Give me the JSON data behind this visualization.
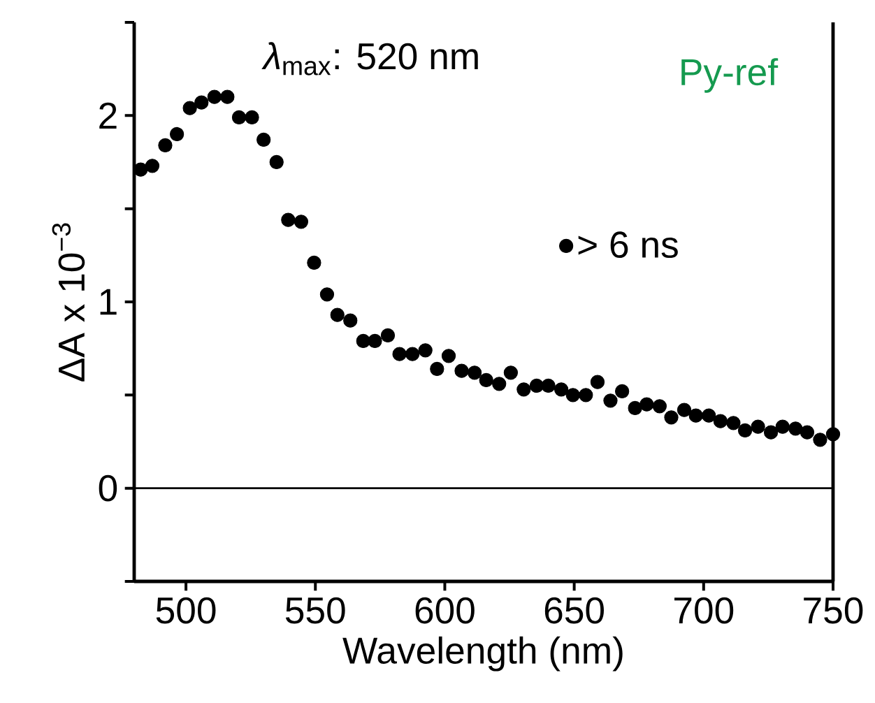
{
  "chart_data": {
    "type": "scatter",
    "xlabel": "Wavelength (nm)",
    "ylabel": "ΔA x 10$^{−3}$",
    "annotations": [
      "*λ*$_{max}$: 520 nm",
      "Py-ref"
    ],
    "xlim": [
      480,
      750
    ],
    "xticks": [
      500,
      550,
      600,
      650,
      700,
      750
    ],
    "ylim": [
      -0.5,
      2.5
    ],
    "yticks": [
      {
        "value": -0.5,
        "label": null
      },
      0,
      {
        "value": 0.5,
        "label": null
      },
      1,
      {
        "value": 1.5,
        "label": null
      },
      2,
      {
        "value": 2.5,
        "label": null
      }
    ],
    "ref_lines": [
      {
        "axis": "y",
        "value": 0,
        "color": "#000000"
      }
    ],
    "marker": "circle",
    "legend": "right",
    "series": [
      {
        "name": "> 6 ns",
        "color": "#000000",
        "x": [
          482.5,
          487,
          492,
          496.5,
          501.5,
          506,
          511,
          516,
          520.5,
          525.5,
          530,
          535,
          539.5,
          544.5,
          549.5,
          554.5,
          558.5,
          563.5,
          568.5,
          573,
          578,
          582.5,
          587.5,
          592.5,
          597,
          601.5,
          606.5,
          611.5,
          616,
          621,
          625.5,
          630.5,
          635.5,
          640,
          645,
          649.5,
          654.5,
          659,
          664,
          668.5,
          673.5,
          678,
          683,
          687.5,
          692.5,
          697,
          702,
          706.5,
          711.5,
          716,
          721,
          726,
          730.5,
          735.5,
          740,
          745,
          750
        ],
        "values": [
          1.71,
          1.73,
          1.84,
          1.9,
          2.04,
          2.07,
          2.1,
          2.1,
          1.99,
          1.99,
          1.87,
          1.75,
          1.44,
          1.43,
          1.21,
          1.04,
          0.93,
          0.9,
          0.79,
          0.79,
          0.82,
          0.72,
          0.72,
          0.74,
          0.64,
          0.71,
          0.63,
          0.62,
          0.58,
          0.56,
          0.62,
          0.53,
          0.55,
          0.55,
          0.53,
          0.5,
          0.5,
          0.57,
          0.47,
          0.52,
          0.43,
          0.45,
          0.44,
          0.38,
          0.42,
          0.39,
          0.39,
          0.36,
          0.35,
          0.31,
          0.33,
          0.3,
          0.33,
          0.32,
          0.3,
          0.26,
          0.29
        ]
      }
    ]
  }
}
